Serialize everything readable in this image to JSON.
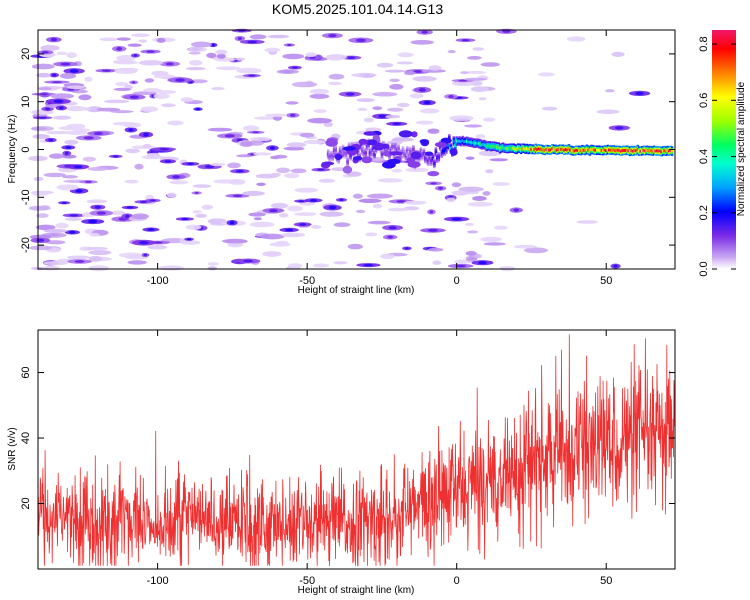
{
  "title": "KOM5.2025.101.04.14.G13",
  "chart_data": [
    {
      "type": "heatmap",
      "xlabel": "Height of straight line (km)",
      "ylabel": "Frequency (Hz)",
      "xlim": [
        -140,
        73
      ],
      "ylim": [
        -25,
        25
      ],
      "xticks": [
        -100,
        -50,
        0,
        50
      ],
      "yticks": [
        -20,
        -10,
        0,
        10,
        20
      ],
      "colorbar": {
        "label": "Normalized spectral amplitude",
        "range": [
          0,
          0.85
        ],
        "ticks": [
          "0.0",
          "0.2",
          "0.4",
          "0.6",
          "0.8"
        ]
      },
      "ridge": {
        "description_points": [
          {
            "x": -43,
            "y": -1.2,
            "amp": 0.1
          },
          {
            "x": -35,
            "y": -0.5,
            "amp": 0.12
          },
          {
            "x": -28,
            "y": 0.6,
            "amp": 0.13
          },
          {
            "x": -20,
            "y": -0.7,
            "amp": 0.1
          },
          {
            "x": -12,
            "y": -1.0,
            "amp": 0.12
          },
          {
            "x": -8,
            "y": -2.5,
            "amp": 0.15
          },
          {
            "x": -4,
            "y": -0.2,
            "amp": 0.2
          },
          {
            "x": 0,
            "y": 1.8,
            "amp": 0.35
          },
          {
            "x": 5,
            "y": 1.5,
            "amp": 0.35
          },
          {
            "x": 10,
            "y": 0.8,
            "amp": 0.4
          },
          {
            "x": 15,
            "y": 0.3,
            "amp": 0.45
          },
          {
            "x": 20,
            "y": 0.2,
            "amp": 0.55
          },
          {
            "x": 25,
            "y": 0.1,
            "amp": 0.7
          },
          {
            "x": 30,
            "y": 0.0,
            "amp": 0.8
          },
          {
            "x": 35,
            "y": 0.0,
            "amp": 0.75
          },
          {
            "x": 40,
            "y": -0.1,
            "amp": 0.7
          },
          {
            "x": 45,
            "y": -0.1,
            "amp": 0.72
          },
          {
            "x": 50,
            "y": -0.2,
            "amp": 0.7
          },
          {
            "x": 55,
            "y": -0.2,
            "amp": 0.78
          },
          {
            "x": 60,
            "y": -0.2,
            "amp": 0.72
          },
          {
            "x": 65,
            "y": -0.3,
            "amp": 0.8
          },
          {
            "x": 72,
            "y": -0.3,
            "amp": 0.75
          }
        ],
        "noise_level": 0.05
      }
    },
    {
      "type": "line",
      "xlabel": "Height of straight line (km)",
      "ylabel": "SNR (v/v)",
      "xlim": [
        -140,
        73
      ],
      "ylim": [
        0,
        73
      ],
      "xticks": [
        -100,
        -50,
        0,
        50
      ],
      "yticks": [
        20,
        40,
        60
      ],
      "series": [
        {
          "color": "#ef3030",
          "trend": [
            {
              "x": -140,
              "y": 15
            },
            {
              "x": -100,
              "y": 15
            },
            {
              "x": -60,
              "y": 14
            },
            {
              "x": -30,
              "y": 14
            },
            {
              "x": -15,
              "y": 18
            },
            {
              "x": -5,
              "y": 22
            },
            {
              "x": 10,
              "y": 27
            },
            {
              "x": 25,
              "y": 32
            },
            {
              "x": 40,
              "y": 37
            },
            {
              "x": 55,
              "y": 39
            },
            {
              "x": 73,
              "y": 40
            }
          ],
          "spread": 8
        }
      ]
    }
  ]
}
